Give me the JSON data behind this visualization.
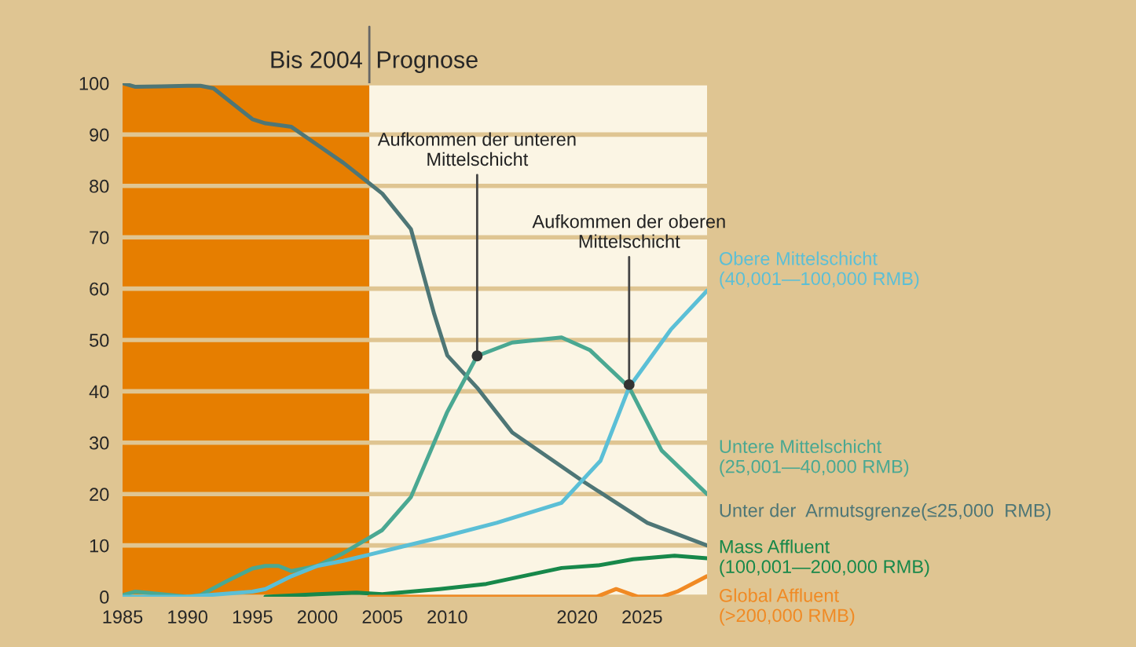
{
  "chart_data": {
    "type": "line",
    "xlim": [
      1985,
      2030
    ],
    "ylim": [
      0,
      100
    ],
    "xticks": [
      1985,
      1990,
      1995,
      2000,
      2005,
      2010,
      2020,
      2025
    ],
    "yticks": [
      0,
      10,
      20,
      30,
      40,
      50,
      60,
      70,
      80,
      90,
      100
    ],
    "grid": "y",
    "legend": "right",
    "bands": [
      {
        "axis": "x",
        "from": 1985,
        "to": 2004,
        "label": "Bis 2004",
        "color": "#e67e00"
      },
      {
        "axis": "x",
        "from": 2004,
        "to": 2030,
        "label": "Prognose",
        "color": "#fbf5e4"
      }
    ],
    "series": [
      {
        "name": "Unter der  Armutsgrenze(≤25,000  RMB)",
        "color": "#4e7676",
        "x": [
          1985,
          1986,
          1988,
          1990,
          1991,
          1992,
          1994,
          1995,
          1996,
          1998,
          2000,
          2002,
          2004,
          2005,
          2007.2,
          2009,
          2010,
          2012.3,
          2015,
          2020.5,
          2025.4,
          2030
        ],
        "values": [
          100,
          99.3,
          99.4,
          99.5,
          99.5,
          99,
          95,
          93,
          92.2,
          91.5,
          88,
          84.5,
          80.5,
          78.5,
          71.6,
          55,
          47,
          40.7,
          32,
          22.4,
          14.4,
          10
        ]
      },
      {
        "name": "Untere Mittelschicht\n(25,001—40,000 RMB)",
        "color": "#4aa892",
        "x": [
          1985,
          1986,
          1988,
          1990,
          1991,
          1993,
          1995,
          1996,
          1997,
          1998,
          2000,
          2002,
          2004,
          2005,
          2007.2,
          2010,
          2012.3,
          2015,
          2018.8,
          2021,
          2024,
          2026.5,
          2030
        ],
        "values": [
          0.3,
          1,
          0.5,
          0,
          0.3,
          3,
          5.5,
          6,
          6,
          5,
          6,
          8.5,
          11.5,
          13,
          19.4,
          36,
          46.9,
          49.5,
          50.5,
          48,
          40.8,
          28.5,
          20
        ]
      },
      {
        "name": "Obere Mittelschicht\n(40,001—100,000 RMB)",
        "color": "#5bbfd6",
        "x": [
          1985,
          1990,
          1995,
          1996,
          1998,
          2000,
          2002,
          2004,
          2009.7,
          2013.8,
          2018.8,
          2021.8,
          2024,
          2027.2,
          2030
        ],
        "values": [
          0,
          0,
          1,
          1.5,
          4,
          6,
          7,
          8.2,
          11.7,
          14.4,
          18.3,
          26.5,
          40.8,
          52,
          59.6
        ]
      },
      {
        "name": "Mass Affluent\n(100,001—200,000 RMB)",
        "color": "#17884a",
        "x": [
          1996,
          2000,
          2003,
          2005,
          2009.4,
          2013,
          2018.8,
          2021.6,
          2024.3,
          2027.5,
          2030
        ],
        "values": [
          0,
          0.5,
          0.8,
          0.5,
          1.5,
          2.5,
          5.6,
          6.1,
          7.3,
          8,
          7.5
        ]
      },
      {
        "name": "Global Affluent\n(>200,000 RMB)",
        "color": "#f08a24",
        "x": [
          2004,
          2021.5,
          2023,
          2024.7,
          2026.5,
          2027.7,
          2030
        ],
        "values": [
          0,
          0,
          1.5,
          0,
          0,
          1,
          4
        ]
      }
    ],
    "annotations": [
      {
        "text": "Aufkommen der unteren\nMittelschicht",
        "x": 2012.3,
        "y": 46.9
      },
      {
        "text": "Aufkommen der oberen\nMittelschicht",
        "x": 2024,
        "y": 41.3
      }
    ]
  }
}
